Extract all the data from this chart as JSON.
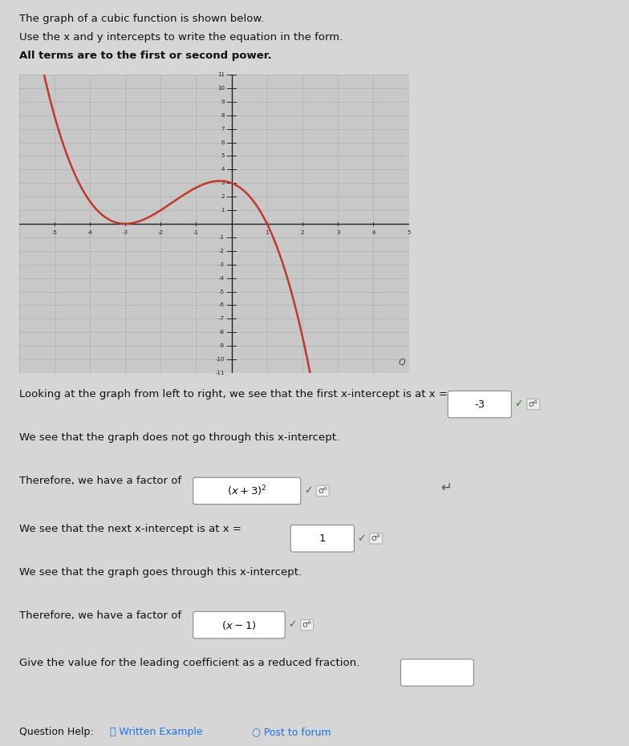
{
  "title_lines": [
    "The graph of a cubic function is shown below.",
    "Use the x and y intercepts to write the equation in the form.",
    "All terms are to the first or second power."
  ],
  "graph_xlim": [
    -6,
    5
  ],
  "graph_ylim": [
    -11,
    11
  ],
  "curve_color": "#c0392b",
  "curve_linewidth": 1.8,
  "a_coeff": -0.3333333333333333,
  "grid_minor_color": "#aaaaaa",
  "grid_major_color": "#888888",
  "axis_color": "#222222",
  "bg_color": "#d6d6d6",
  "plot_bg_color": "#c8c8c8",
  "answer_x1": "-3",
  "answer_factor1": "(x+3)^2",
  "answer_x2": "1",
  "answer_factor2": "(x-1)",
  "q1": "Looking at the graph from left to right, we see that the first x-intercept is at x =",
  "q2": "We see that the graph does not go through this x-intercept.",
  "q3": "Therefore, we have a factor of",
  "q4": "We see that the next x-intercept is at x =",
  "q5": "We see that the graph goes through this x-intercept.",
  "q6": "Therefore, we have a factor of",
  "q7": "Give the value for the leading coefficient as a reduced fraction.",
  "footer": "Question Help:",
  "footer_link1": "⎘ Written Example",
  "footer_link2": "○ Post to forum"
}
